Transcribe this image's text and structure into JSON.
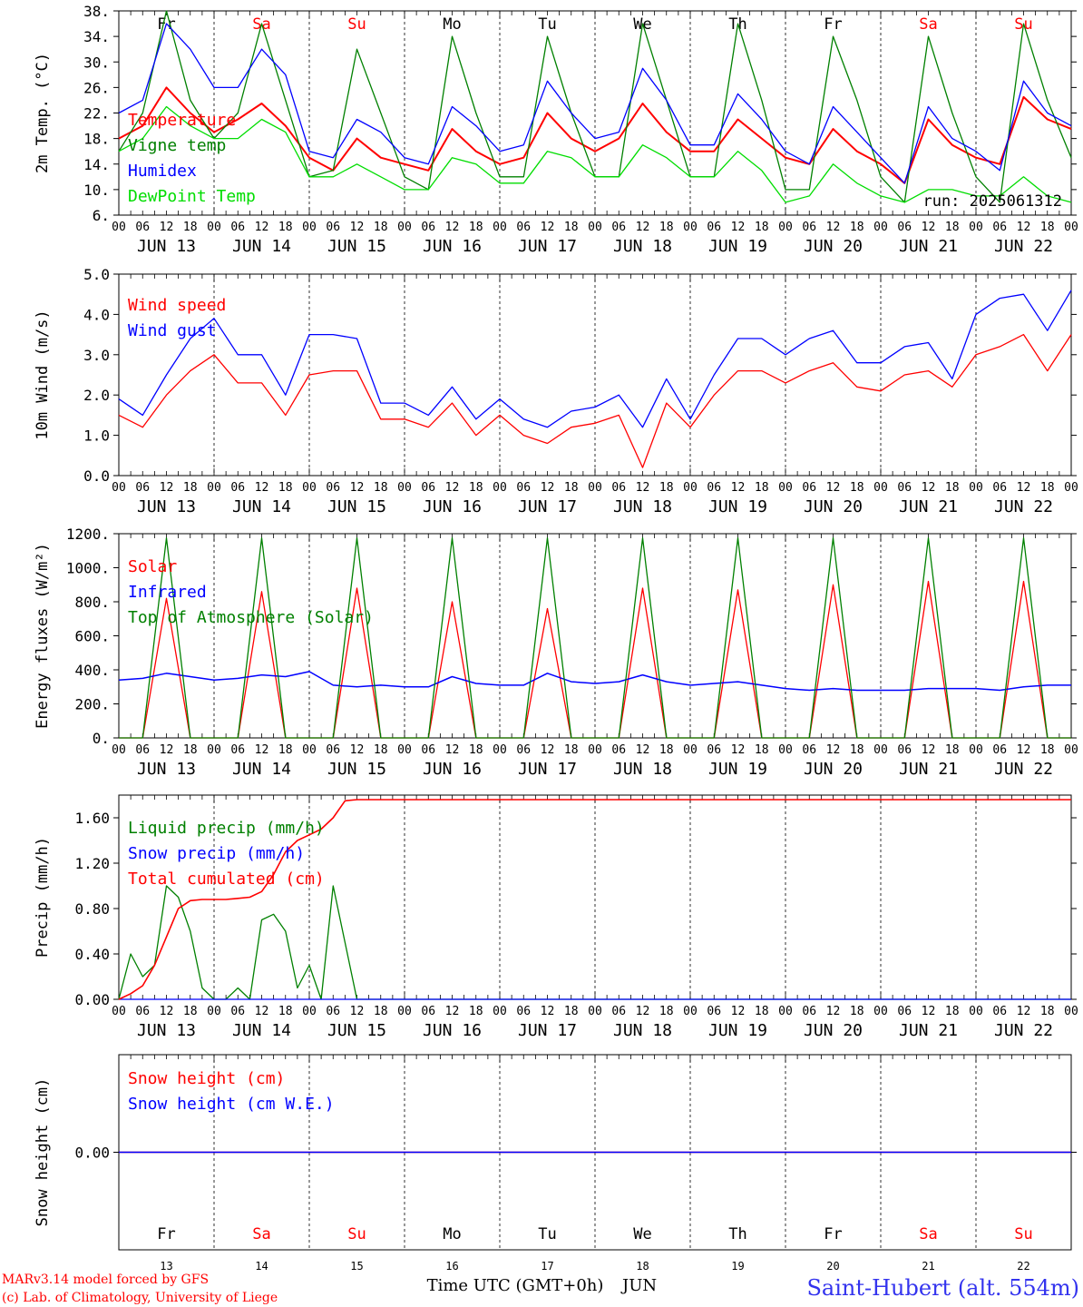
{
  "colors": {
    "red": "#ff0000",
    "green": "#008000",
    "blue": "#0000ff",
    "lightgreen": "#00dd00",
    "black": "#000000"
  },
  "days": {
    "dates": [
      "JUN 13",
      "JUN 14",
      "JUN 15",
      "JUN 16",
      "JUN 17",
      "JUN 18",
      "JUN 19",
      "JUN 20",
      "JUN 21",
      "JUN 22"
    ],
    "names": [
      "Fr",
      "Sa",
      "Su",
      "Mo",
      "Tu",
      "We",
      "Th",
      "Fr",
      "Sa",
      "Su"
    ],
    "name_colors": [
      "#000000",
      "#ff0000",
      "#ff0000",
      "#000000",
      "#000000",
      "#000000",
      "#000000",
      "#000000",
      "#ff0000",
      "#ff0000"
    ],
    "numbers": [
      "13",
      "14",
      "15",
      "16",
      "17",
      "18",
      "19",
      "20",
      "21",
      "22"
    ],
    "hour_labels": [
      "00",
      "06",
      "12",
      "18"
    ]
  },
  "footer": {
    "credit1": "MARv3.14 model forced by GFS",
    "credit2": "(c) Lab. of Climatology, University of Liege",
    "xlabel": "Time UTC (GMT+0h)",
    "month": "JUN",
    "station": "Saint-Hubert (alt. 554m)"
  },
  "chart_data": [
    {
      "type": "line",
      "ylabel": "2m Temp. (°C)",
      "ylim": [
        6,
        38
      ],
      "yticks": [
        "6.",
        "10.",
        "14.",
        "18.",
        "22.",
        "26.",
        "30.",
        "34.",
        "38."
      ],
      "ytick_values": [
        6,
        10,
        14,
        18,
        22,
        26,
        30,
        34,
        38
      ],
      "annotation": "run: 2025061312",
      "x_hours": [
        0,
        6,
        12,
        18,
        24,
        30,
        36,
        42,
        48,
        54,
        60,
        66,
        72,
        78,
        84,
        90,
        96,
        102,
        108,
        114,
        120,
        126,
        132,
        138,
        144,
        150,
        156,
        162,
        168,
        174,
        180,
        186,
        192,
        198,
        204,
        210,
        216,
        222,
        228,
        234,
        240
      ],
      "series": [
        {
          "name": "Temperature",
          "color": "#ff0000",
          "values": [
            18,
            20,
            26,
            22,
            19,
            21,
            23.5,
            20,
            15,
            13,
            18,
            15,
            14,
            13,
            19.5,
            16,
            14,
            15,
            22,
            18,
            16,
            18,
            23.5,
            19,
            16,
            16,
            21,
            18,
            15,
            14,
            19.5,
            16,
            14,
            11,
            21,
            17,
            15,
            14,
            24.5,
            21,
            19.5
          ]
        },
        {
          "name": "Vigne temp",
          "color": "#008000",
          "values": [
            16,
            22,
            38,
            24,
            18,
            22,
            36,
            24,
            12,
            13,
            32,
            22,
            12,
            10,
            34,
            22,
            12,
            12,
            34,
            22,
            12,
            12,
            36,
            24,
            12,
            12,
            36,
            24,
            10,
            10,
            34,
            24,
            12,
            8,
            34,
            22,
            12,
            8,
            36,
            24,
            15
          ]
        },
        {
          "name": "Humidex",
          "color": "#0000ff",
          "values": [
            22,
            24,
            36,
            32,
            26,
            26,
            32,
            28,
            16,
            15,
            21,
            19,
            15,
            14,
            23,
            20,
            16,
            17,
            27,
            22,
            18,
            19,
            29,
            24,
            17,
            17,
            25,
            21,
            16,
            14,
            23,
            19,
            15,
            11,
            23,
            18,
            16,
            13,
            27,
            22,
            20
          ]
        },
        {
          "name": "DewPoint Temp",
          "color": "#00dd00",
          "values": [
            16,
            18,
            23,
            20,
            18,
            18,
            21,
            19,
            12,
            12,
            14,
            12,
            10,
            10,
            15,
            14,
            11,
            11,
            16,
            15,
            12,
            12,
            17,
            15,
            12,
            12,
            16,
            13,
            8,
            9,
            14,
            11,
            9,
            8,
            10,
            10,
            9,
            9,
            12,
            9,
            8
          ]
        }
      ]
    },
    {
      "type": "line",
      "ylabel": "10m Wind (m/s)",
      "ylim": [
        0,
        5
      ],
      "yticks": [
        "0.0",
        "1.0",
        "2.0",
        "3.0",
        "4.0",
        "5.0"
      ],
      "ytick_values": [
        0,
        1,
        2,
        3,
        4,
        5
      ],
      "x_hours": [
        0,
        6,
        12,
        18,
        24,
        30,
        36,
        42,
        48,
        54,
        60,
        66,
        72,
        78,
        84,
        90,
        96,
        102,
        108,
        114,
        120,
        126,
        132,
        138,
        144,
        150,
        156,
        162,
        168,
        174,
        180,
        186,
        192,
        198,
        204,
        210,
        216,
        222,
        228,
        234,
        240
      ],
      "series": [
        {
          "name": "Wind speed",
          "color": "#ff0000",
          "values": [
            1.5,
            1.2,
            2.0,
            2.6,
            3.0,
            2.3,
            2.3,
            1.5,
            2.5,
            2.6,
            2.6,
            1.4,
            1.4,
            1.2,
            1.8,
            1.0,
            1.5,
            1.0,
            0.8,
            1.2,
            1.3,
            1.5,
            0.2,
            1.8,
            1.2,
            2.0,
            2.6,
            2.6,
            2.3,
            2.6,
            2.8,
            2.2,
            2.1,
            2.5,
            2.6,
            2.2,
            3.0,
            3.2,
            3.5,
            2.6,
            3.5
          ]
        },
        {
          "name": "Wind gust",
          "color": "#0000ff",
          "values": [
            1.9,
            1.5,
            2.5,
            3.4,
            3.9,
            3.0,
            3.0,
            2.0,
            3.5,
            3.5,
            3.4,
            1.8,
            1.8,
            1.5,
            2.2,
            1.4,
            1.9,
            1.4,
            1.2,
            1.6,
            1.7,
            2.0,
            1.2,
            2.4,
            1.4,
            2.5,
            3.4,
            3.4,
            3.0,
            3.4,
            3.6,
            2.8,
            2.8,
            3.2,
            3.3,
            2.4,
            4.0,
            4.4,
            4.5,
            3.6,
            4.6
          ]
        }
      ]
    },
    {
      "type": "line",
      "ylabel": "Energy fluxes (W/m²)",
      "ylim": [
        0,
        1200
      ],
      "yticks": [
        "0.",
        "200.",
        "400.",
        "600.",
        "800.",
        "1000.",
        "1200."
      ],
      "ytick_values": [
        0,
        200,
        400,
        600,
        800,
        1000,
        1200
      ],
      "x_hours": [
        0,
        6,
        12,
        18,
        24,
        30,
        36,
        42,
        48,
        54,
        60,
        66,
        72,
        78,
        84,
        90,
        96,
        102,
        108,
        114,
        120,
        126,
        132,
        138,
        144,
        150,
        156,
        162,
        168,
        174,
        180,
        186,
        192,
        198,
        204,
        210,
        216,
        222,
        228,
        234,
        240
      ],
      "series": [
        {
          "name": "Solar",
          "color": "#ff0000",
          "values": [
            0,
            0,
            820,
            0,
            0,
            0,
            860,
            0,
            0,
            0,
            880,
            0,
            0,
            0,
            800,
            0,
            0,
            0,
            760,
            0,
            0,
            0,
            880,
            0,
            0,
            0,
            870,
            0,
            0,
            0,
            900,
            0,
            0,
            0,
            920,
            0,
            0,
            0,
            920,
            0,
            0
          ]
        },
        {
          "name": "Infrared",
          "color": "#0000ff",
          "values": [
            340,
            350,
            380,
            360,
            340,
            350,
            370,
            360,
            390,
            310,
            300,
            310,
            300,
            300,
            360,
            320,
            310,
            310,
            380,
            330,
            320,
            330,
            370,
            330,
            310,
            320,
            330,
            310,
            290,
            280,
            290,
            280,
            280,
            280,
            290,
            290,
            290,
            280,
            300,
            310,
            310
          ]
        },
        {
          "name": "Top of Atmosphere (Solar)",
          "color": "#008000",
          "values": [
            0,
            0,
            1175,
            0,
            0,
            0,
            1175,
            0,
            0,
            0,
            1175,
            0,
            0,
            0,
            1175,
            0,
            0,
            0,
            1175,
            0,
            0,
            0,
            1175,
            0,
            0,
            0,
            1175,
            0,
            0,
            0,
            1175,
            0,
            0,
            0,
            1175,
            0,
            0,
            0,
            1175,
            0,
            0
          ]
        }
      ]
    },
    {
      "type": "line",
      "ylabel": "Precip (mm/h)",
      "ylim": [
        0,
        1.8
      ],
      "yticks": [
        "0.00",
        "0.40",
        "0.80",
        "1.20",
        "1.60"
      ],
      "ytick_values": [
        0,
        0.4,
        0.8,
        1.2,
        1.6
      ],
      "x_hours": [
        0,
        3,
        6,
        9,
        12,
        15,
        18,
        21,
        24,
        27,
        30,
        33,
        36,
        39,
        42,
        45,
        48,
        51,
        54,
        57,
        60,
        66,
        72,
        240
      ],
      "series": [
        {
          "name": "Liquid precip (mm/h)",
          "color": "#008000",
          "values": [
            0,
            0.4,
            0.2,
            0.3,
            1.0,
            0.9,
            0.6,
            0.1,
            0,
            0,
            0.1,
            0,
            0.7,
            0.75,
            0.6,
            0.1,
            0.3,
            0,
            1.0,
            0.5,
            0,
            0,
            0,
            0
          ]
        },
        {
          "name": "Snow precip (mm/h)",
          "color": "#0000ff",
          "values": [
            0,
            0,
            0,
            0,
            0,
            0,
            0,
            0,
            0,
            0,
            0,
            0,
            0,
            0,
            0,
            0,
            0,
            0,
            0,
            0,
            0,
            0,
            0,
            0
          ]
        },
        {
          "name": "Total cumulated (cm)",
          "color": "#ff0000",
          "values": [
            0,
            0.05,
            0.12,
            0.3,
            0.55,
            0.8,
            0.87,
            0.88,
            0.88,
            0.88,
            0.89,
            0.9,
            0.95,
            1.1,
            1.3,
            1.4,
            1.45,
            1.5,
            1.6,
            1.75,
            1.76,
            1.76,
            1.76,
            1.76
          ]
        }
      ]
    },
    {
      "type": "line",
      "ylabel": "Snow height (cm)",
      "ylim": [
        -1,
        1
      ],
      "yticks": [
        "0.00"
      ],
      "ytick_values": [
        0
      ],
      "x_hours": [
        0,
        240
      ],
      "series": [
        {
          "name": "Snow height (cm)",
          "color": "#ff0000",
          "values": [
            0,
            0
          ]
        },
        {
          "name": "Snow height (cm W.E.)",
          "color": "#0000ff",
          "values": [
            0,
            0
          ]
        }
      ]
    }
  ]
}
